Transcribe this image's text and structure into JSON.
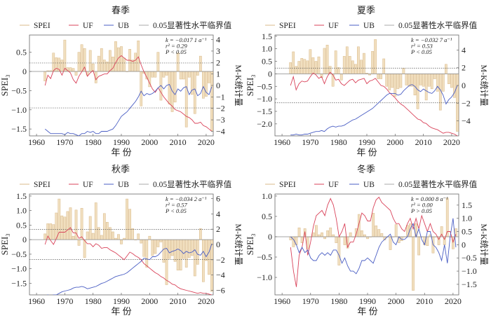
{
  "legend": {
    "spei": "SPEI",
    "uf": "UF",
    "ub": "UB",
    "crit": "0.05显著性水平临界值"
  },
  "axes": {
    "ylabel_left": "SPEI",
    "ylabel_left_sub": "3",
    "ylabel_right": "M-K统计量",
    "xlabel": "年 份"
  },
  "colors": {
    "bar_fill": "#f1dfbf",
    "bar_stroke": "#d8b888",
    "uf": "#d9435a",
    "ub": "#4a5ec4",
    "crit": "#555555",
    "zero": "#888888"
  },
  "chart_data": [
    {
      "type": "bar+line",
      "title": "春季",
      "annotation": [
        "k = −0.017 1 a⁻¹",
        "r² = 0.29",
        "P < 0.05"
      ],
      "years_start": 1963,
      "xlim": [
        1957.5,
        2022.5
      ],
      "xticks": [
        1960,
        1970,
        1980,
        1990,
        2000,
        2010,
        2020
      ],
      "ylim_left": [
        -1.68,
        0.95
      ],
      "yticks_left": [
        -1.5,
        -1.0,
        -0.5,
        0,
        0.5
      ],
      "yticklabels_left": [
        "−1.5",
        "−1.0",
        "−0.5",
        "0",
        "0.5"
      ],
      "ylim_right": [
        -4.4,
        4.4
      ],
      "yticks_right": [
        -4,
        -3,
        -2,
        -1,
        0,
        1,
        2,
        3,
        4
      ],
      "yticklabels_right": [
        "−4",
        "−3",
        "−2",
        "−1",
        "0",
        "1",
        "2",
        "3",
        "4"
      ],
      "critical": [
        1.96,
        -1.96
      ],
      "spei": [
        -0.25,
        0.02,
        0.02,
        0.48,
        0.36,
        0.35,
        0.3,
        0.82,
        0.1,
        0.1,
        0.08,
        -0.1,
        0.5,
        0.7,
        0.6,
        -0.1,
        0.55,
        0.2,
        -0.3,
        0.4,
        0.6,
        0.3,
        0.25,
        0.55,
        0.38,
        0.78,
        0.62,
        0.65,
        0.35,
        0.0,
        0.58,
        0.3,
        0.48,
        0.8,
        -0.9,
        -0.05,
        -0.2,
        -0.4,
        -0.15,
        -0.15,
        0.5,
        -0.75,
        -0.15,
        -0.1,
        -0.85,
        -1.05,
        -0.8,
        0.48,
        -0.2,
        -0.2,
        -1.45,
        -0.15,
        -0.6,
        -1.1,
        -0.1,
        0.4,
        -0.7,
        -0.65,
        -0.3,
        -1.55
      ],
      "uf": [
        0,
        0.9,
        0.6,
        1.3,
        1.5,
        1.4,
        0.9,
        1.5,
        1.3,
        1.1,
        0.5,
        0.2,
        0.8,
        1.2,
        1.6,
        0.8,
        1.1,
        1.3,
        0.5,
        0.8,
        0.9,
        1.0,
        1.0,
        1.3,
        1.5,
        2.0,
        2.4,
        2.6,
        2.4,
        2.2,
        2.2,
        2.1,
        2.2,
        2.5,
        1.8,
        1.2,
        0.7,
        0.2,
        -0.3,
        -0.6,
        -0.2,
        -0.6,
        -1.0,
        -1.3,
        -1.6,
        -1.8,
        -2.1,
        -2.2,
        -2.3,
        -2.5,
        -2.7,
        -2.8,
        -3.0,
        -3.3,
        -3.3,
        -3.2,
        -3.5,
        -3.6,
        -3.8,
        -4.0
      ],
      "ub": [
        -3.8,
        -4.0,
        -4.2,
        -4.2,
        -4.2,
        -4.2,
        -4.2,
        -4.3,
        -4.1,
        -4.2,
        -4.2,
        -4.3,
        -4.4,
        -4.2,
        -4.2,
        -4.0,
        -4.1,
        -4.0,
        -4.2,
        -4.2,
        -4.0,
        -4.0,
        -4.0,
        -3.9,
        -3.8,
        -3.5,
        -3.1,
        -2.7,
        -2.5,
        -2.3,
        -2.0,
        -1.7,
        -1.4,
        -1.0,
        -0.5,
        -0.9,
        -0.7,
        -0.8,
        -0.7,
        -0.5,
        -0.2,
        0.0,
        -0.3,
        0.0,
        0.1,
        -0.5,
        -0.8,
        -0.3,
        -0.5,
        -0.2,
        -0.1,
        -0.8,
        -0.4,
        -0.3,
        -0.9,
        -0.7,
        -0.1,
        -0.6,
        -0.8,
        -0.1
      ]
    },
    {
      "type": "bar+line",
      "title": "夏季",
      "annotation": [
        "k = −0.032 7 a⁻¹",
        "r² = 0.53",
        "P < 0.05"
      ],
      "years_start": 1963,
      "xlim": [
        1957.5,
        2022.5
      ],
      "xticks": [
        1960,
        1970,
        1980,
        1990,
        2000,
        2010,
        2020
      ],
      "ylim_left": [
        -2.48,
        1.55
      ],
      "yticks_left": [
        -2.0,
        -1.5,
        -1.0,
        -0.5,
        0,
        0.5,
        1.0,
        1.5
      ],
      "yticklabels_left": [
        "−2.0",
        "−1.5",
        "−1.0",
        "−0.5",
        "0",
        "0.5",
        "1.0",
        "1.5"
      ],
      "ylim_right": [
        -5.7,
        5.7
      ],
      "yticks_right": [
        -4,
        -2,
        0,
        2,
        4
      ],
      "yticklabels_right": [
        "−4",
        "−2",
        "0",
        "2",
        "4"
      ],
      "critical": [
        1.96,
        -1.96
      ],
      "spei": [
        0.45,
        0.88,
        0.3,
        0.5,
        0.62,
        0.58,
        0.52,
        0.97,
        0.65,
        0.5,
        0.68,
        -0.15,
        1.02,
        1.15,
        0.3,
        -0.5,
        0.92,
        0.25,
        -0.25,
        0.7,
        1.08,
        0.7,
        0.52,
        0.38,
        1.08,
        0.55,
        0.82,
        0.03,
        -0.05,
        0.9,
        1.37,
        -0.2,
        -0.2,
        0.6,
        -0.5,
        -0.65,
        -0.55,
        -0.9,
        -0.6,
        -0.55,
        0.22,
        -0.45,
        -0.5,
        -0.5,
        -0.85,
        -1.4,
        -0.45,
        -0.5,
        -1.05,
        -0.5,
        -0.6,
        -0.2,
        -0.7,
        -1.45,
        -0.7,
        0.38,
        -0.4,
        -0.55,
        -0.95,
        -2.3
      ],
      "uf": [
        0,
        1.0,
        -0.5,
        0.2,
        0.5,
        0.4,
        0.5,
        1.0,
        1.4,
        1.2,
        0.8,
        1.0,
        0.2,
        1.0,
        1.5,
        1.2,
        0.6,
        0.7,
        0.2,
        0.0,
        0.3,
        0.6,
        0.7,
        0.3,
        0.6,
        0.7,
        0.8,
        0.2,
        0.5,
        0.6,
        0.8,
        0.4,
        0.0,
        -0.1,
        -0.4,
        -0.8,
        -1.1,
        -1.4,
        -1.8,
        -2.1,
        -2.3,
        -2.6,
        -2.9,
        -3.2,
        -3.5,
        -3.8,
        -3.9,
        -4.2,
        -4.3,
        -4.6,
        -4.8,
        -4.9,
        -5.0,
        -5.2,
        -5.4,
        -5.3,
        -5.3,
        -5.4,
        -5.5,
        -5.7
      ],
      "ub": [
        -5.6,
        -5.6,
        -5.5,
        -5.6,
        -5.6,
        -5.5,
        -5.5,
        -5.4,
        -5.3,
        -5.2,
        -5.2,
        -5.1,
        -5.2,
        -4.9,
        -4.7,
        -4.6,
        -4.7,
        -4.6,
        -4.6,
        -4.5,
        -4.3,
        -4.1,
        -3.9,
        -3.8,
        -3.6,
        -3.4,
        -3.2,
        -3.0,
        -2.8,
        -2.6,
        -2.3,
        -2.0,
        -1.7,
        -1.4,
        -1.1,
        -0.9,
        -0.9,
        -0.9,
        -1.1,
        -1.0,
        -0.6,
        -0.3,
        0.0,
        0.1,
        -0.1,
        -0.5,
        -0.7,
        -0.4,
        -0.6,
        -0.8,
        -0.9,
        -0.6,
        -0.1,
        -0.5,
        -1.1,
        -2.1,
        -1.6,
        -1.3,
        -0.8,
        0.0
      ]
    },
    {
      "type": "bar+line",
      "title": "秋季",
      "annotation": [
        "k = −0.034 2 a⁻¹",
        "r² = 0.57",
        "P < 0.05"
      ],
      "years_start": 1963,
      "xlim": [
        1957.5,
        2022.5
      ],
      "xticks": [
        1960,
        1970,
        1980,
        1990,
        2000,
        2010,
        2020
      ],
      "ylim_left": [
        -1.9,
        1.57
      ],
      "yticks_left": [
        -1.5,
        -1.0,
        -0.5,
        0,
        0.5,
        1.0,
        1.5
      ],
      "yticklabels_left": [
        "−1.5",
        "−1.0",
        "−0.5",
        "0",
        "0.5",
        "1.0",
        "1.5"
      ],
      "ylim_right": [
        -6.6,
        6.6
      ],
      "yticks_right": [
        -6,
        -4,
        -2,
        0,
        2,
        4,
        6
      ],
      "yticklabels_right": [
        "−6",
        "−4",
        "−2",
        "0",
        "2",
        "4",
        "6"
      ],
      "critical": [
        1.96,
        -1.96
      ],
      "spei": [
        0.2,
        0.55,
        0.55,
        0.52,
        0.92,
        1.4,
        0.82,
        0.78,
        0.97,
        1.1,
        0.12,
        1.02,
        -0.2,
        1.08,
        -0.62,
        0.27,
        0.8,
        0.22,
        1.27,
        0.42,
        0.15,
        0.9,
        0.6,
        0.42,
        0.27,
        0.05,
        0.18,
        -0.15,
        0.05,
        1.4,
        1.05,
        0.38,
        0.0,
        0.2,
        -0.12,
        -0.58,
        -0.95,
        0.12,
        -0.55,
        -0.48,
        -0.25,
        -0.08,
        -0.78,
        -1.55,
        -0.65,
        -0.55,
        -0.75,
        -1.05,
        -1.05,
        -0.65,
        -0.95,
        -0.62,
        -0.55,
        -1.25,
        -0.85,
        0.38,
        -1.45,
        -0.72,
        -1.2,
        -1.78
      ],
      "uf": [
        0,
        1.1,
        0.5,
        0.0,
        0.8,
        1.6,
        1.6,
        1.6,
        1.9,
        2.2,
        1.5,
        1.5,
        0.8,
        1.0,
        0.5,
        0.1,
        0.1,
        -0.3,
        0.1,
        -0.1,
        -0.5,
        -0.4,
        -0.4,
        -0.7,
        -0.9,
        -1.1,
        -1.4,
        -1.7,
        -2.0,
        -1.5,
        -1.0,
        -1.2,
        -1.5,
        -1.7,
        -2.0,
        -2.5,
        -2.8,
        -3.1,
        -3.4,
        -3.7,
        -3.9,
        -4.2,
        -4.4,
        -4.7,
        -4.9,
        -5.2,
        -5.3,
        -5.6,
        -5.8,
        -5.9,
        -6.0,
        -6.1,
        -6.2,
        -6.3,
        -6.4,
        -6.3,
        -6.4,
        -6.4,
        -6.5,
        -6.6
      ],
      "ub": [
        -6.7,
        -6.6,
        -6.7,
        -6.6,
        -6.6,
        -6.4,
        -6.2,
        -6.1,
        -6.0,
        -5.9,
        -5.7,
        -5.6,
        -5.6,
        -5.5,
        -5.6,
        -5.8,
        -5.7,
        -5.6,
        -5.5,
        -5.3,
        -5.1,
        -5.0,
        -4.8,
        -4.6,
        -4.4,
        -4.2,
        -4.1,
        -4.0,
        -3.9,
        -3.7,
        -3.4,
        -3.1,
        -2.8,
        -2.5,
        -2.2,
        -1.8,
        -1.9,
        -2.0,
        -1.6,
        -1.6,
        -1.4,
        -1.0,
        -0.6,
        -0.5,
        -1.1,
        -0.9,
        -0.8,
        -0.6,
        -0.8,
        -1.2,
        -0.9,
        -1.1,
        -1.0,
        -0.7,
        -1.3,
        -1.4,
        -0.9,
        -1.6,
        -1.0,
        0.1
      ]
    },
    {
      "type": "bar+line",
      "title": "冬季",
      "annotation": [
        "k = 0.000 8 a⁻¹",
        "r² = 0.00",
        "P > 0.05"
      ],
      "years_start": 1963,
      "xlim": [
        1957.5,
        2022.0
      ],
      "xticks": [
        1960,
        1970,
        1980,
        1990,
        2000,
        2010,
        2020
      ],
      "ylim_left": [
        -1.43,
        1.05
      ],
      "yticks_left": [
        -1.0,
        -0.5,
        0,
        0.5,
        1.0
      ],
      "yticklabels_left": [
        "−1.0",
        "−0.5",
        "0",
        "0.5",
        "1.0"
      ],
      "ylim_right": [
        -1.9,
        1.92
      ],
      "yticks_right": [
        -1.5,
        -1.0,
        -0.5,
        0,
        0.5,
        1.0,
        1.5
      ],
      "yticklabels_right": [
        "−1.5",
        "−1.0",
        "−0.5",
        "0",
        "0.5",
        "1.0",
        "1.5"
      ],
      "critical": [
        1.96,
        -1.96
      ],
      "spei": [
        -0.08,
        -0.25,
        -0.2,
        0.22,
        -0.15,
        0.2,
        -0.3,
        0.0,
        0.1,
        0.28,
        0.05,
        0.1,
        -0.05,
        0.15,
        0.22,
        0.05,
        -0.15,
        -0.7,
        0.0,
        -0.2,
        -0.28,
        0.1,
        0.0,
        0.2,
        0.55,
        0.15,
        0.05,
        -0.05,
        0.0,
        0.58,
        0.27,
        0.18,
        0.08,
        -0.08,
        0.0,
        -0.32,
        0.0,
        0.3,
        -0.15,
        -0.1,
        0.0,
        0.28,
        0.32,
        -1.32,
        0.32,
        -0.45,
        0.0,
        -0.2,
        -0.22,
        0.05,
        -0.4,
        0.0,
        -0.2,
        0.25,
        -0.2,
        0.95,
        0.0,
        -0.3,
        0.2
      ],
      "uf": [
        -0.1,
        -1.0,
        -1.6,
        -0.4,
        -0.1,
        0.5,
        -0.4,
        0.1,
        0.7,
        1.1,
        1.2,
        1.3,
        1.1,
        1.5,
        1.75,
        1.5,
        1.0,
        0.3,
        0.5,
        0.8,
        -0.1,
        0.1,
        0.1,
        0.4,
        0.8,
        1.2,
        1.1,
        0.9,
        0.9,
        1.4,
        1.7,
        1.8,
        1.6,
        1.5,
        1.4,
        1.3,
        1.0,
        0.8,
        0.8,
        0.6,
        0.5,
        0.8,
        1.0,
        0.6,
        1.0,
        0.6,
        1.1,
        0.8,
        0.5,
        0.8,
        0.5,
        0.4,
        0.2,
        0.4,
        0.2,
        0.5,
        0.5,
        0.1,
        0.4
      ],
      "ub": [
        0.3,
        0.2,
        0.0,
        -0.3,
        -0.1,
        -0.3,
        -0.2,
        -0.5,
        -0.6,
        -0.6,
        -0.4,
        -0.3,
        -0.4,
        -0.3,
        -0.4,
        -0.2,
        -0.2,
        -0.4,
        -0.7,
        -0.5,
        -0.8,
        -1.0,
        -1.0,
        -1.1,
        -0.9,
        -0.6,
        -0.6,
        -0.5,
        -0.6,
        -0.7,
        -0.4,
        -0.1,
        0.1,
        0.2,
        0.3,
        0.4,
        0.1,
        0.0,
        0.3,
        0.2,
        0.2,
        0.3,
        0.6,
        0.8,
        0.3,
        0.6,
        0.2,
        0.0,
        0.5,
        0.5,
        0.0,
        -0.1,
        -0.3,
        -0.6,
        0.0,
        -0.7,
        0.3,
        1.0,
        -0.1
      ]
    }
  ]
}
